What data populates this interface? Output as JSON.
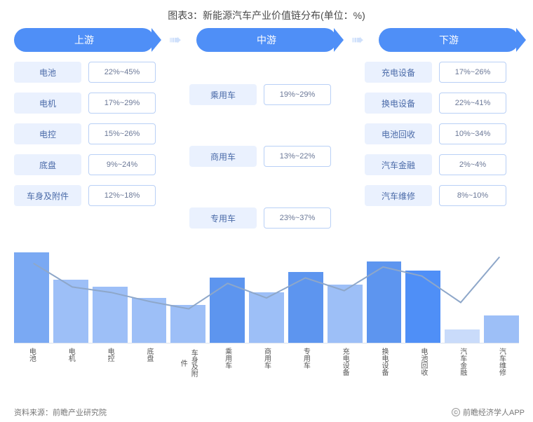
{
  "title": "图表3：新能源汽车产业价值链分布(单位：%)",
  "sections": {
    "upstream": {
      "label": "上游"
    },
    "midstream": {
      "label": "中游"
    },
    "downstream": {
      "label": "下游"
    }
  },
  "arrow_glyph": "➠",
  "upstream_items": [
    {
      "label": "电池",
      "value": "22%~45%"
    },
    {
      "label": "电机",
      "value": "17%~29%"
    },
    {
      "label": "电控",
      "value": "15%~26%"
    },
    {
      "label": "底盘",
      "value": "9%~24%"
    },
    {
      "label": "车身及附件",
      "value": "12%~18%"
    }
  ],
  "midstream_items": [
    {
      "label": "乘用车",
      "value": "19%~29%"
    },
    {
      "label": "商用车",
      "value": "13%~22%"
    },
    {
      "label": "专用车",
      "value": "23%~37%"
    }
  ],
  "downstream_items": [
    {
      "label": "充电设备",
      "value": "17%~26%"
    },
    {
      "label": "换电设备",
      "value": "22%~41%"
    },
    {
      "label": "电池回收",
      "value": "10%~34%"
    },
    {
      "label": "汽车金融",
      "value": "2%~4%"
    },
    {
      "label": "汽车维修",
      "value": "8%~10%"
    }
  ],
  "bar_chart": {
    "type": "bar_with_line",
    "categories": [
      "电池",
      "电机",
      "电控",
      "底盘",
      "车身及附件",
      "乘用车",
      "商用车",
      "专用车",
      "充电设备",
      "换电设备",
      "电池回收",
      "汽车金融",
      "汽车维修"
    ],
    "values": [
      100,
      70,
      62,
      50,
      42,
      72,
      56,
      78,
      64,
      90,
      80,
      15,
      30
    ],
    "line_values": [
      88,
      62,
      56,
      46,
      38,
      66,
      50,
      72,
      58,
      84,
      74,
      45,
      95
    ],
    "ylim": [
      0,
      100
    ],
    "bar_colors": [
      "#7aa9f3",
      "#9dbff7",
      "#9dbff7",
      "#9dbff7",
      "#9dbff7",
      "#5d95ef",
      "#9dbff7",
      "#5d95ef",
      "#9dbff7",
      "#5d95ef",
      "#4f8ff7",
      "#c9dbfa",
      "#9dbff7"
    ],
    "line_color": "#8ea7c9",
    "line_width": 2,
    "background_color": "#ffffff",
    "axis_color": "#d9e2ef",
    "label_fontsize": 10,
    "label_color": "#555555"
  },
  "colors": {
    "pill_bg": "#4f8ff7",
    "pill_text": "#ffffff",
    "label_box_bg": "#eaf1fe",
    "label_box_text": "#4a6aa8",
    "value_box_border": "#b9d0f6",
    "value_box_text": "#6b7897",
    "arrow": "#cfe0fb"
  },
  "footer": {
    "source": "资料来源：前瞻产业研究院",
    "copyright": "前瞻经济学人APP",
    "copy_symbol": "©"
  }
}
